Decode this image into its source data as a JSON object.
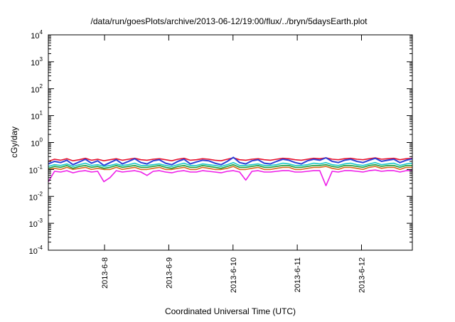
{
  "chart_data": {
    "type": "line",
    "title": "/data/run/goesPlots/archive/2013-06-12/19:00/flux/../bryn/5daysEarth.plot",
    "xlabel": "Coordinated Universal Time (UTC)",
    "ylabel": "cGy/day",
    "yscale": "log",
    "ylim": [
      0.0001,
      10000
    ],
    "xlim": [
      "2013-06-07T03:00",
      "2013-06-12T19:00"
    ],
    "grid": false,
    "legend": "none",
    "y_ticks": [
      {
        "base": "10",
        "exp": "4",
        "value": 10000
      },
      {
        "base": "10",
        "exp": "3",
        "value": 1000
      },
      {
        "base": "10",
        "exp": "2",
        "value": 100
      },
      {
        "base": "10",
        "exp": "1",
        "value": 10
      },
      {
        "base": "10",
        "exp": "0",
        "value": 1
      },
      {
        "base": "10",
        "exp": "-1",
        "value": 0.1
      },
      {
        "base": "10",
        "exp": "-2",
        "value": 0.01
      },
      {
        "base": "10",
        "exp": "-3",
        "value": 0.001
      },
      {
        "base": "10",
        "exp": "-4",
        "value": 0.0001
      }
    ],
    "x_ticks": [
      "2013-6-8",
      "2013-6-9",
      "2013-6-10",
      "2013-6-11",
      "2013-6-12"
    ],
    "x_tick_dates": [
      "2013-06-08T00:00",
      "2013-06-09T00:00",
      "2013-06-10T00:00",
      "2013-06-11T00:00",
      "2013-06-12T00:00"
    ],
    "series": [
      {
        "color": "#e8102a",
        "level": 0.22,
        "values": [
          0.2,
          0.24,
          0.22,
          0.25,
          0.21,
          0.23,
          0.26,
          0.22,
          0.24,
          0.21,
          0.23,
          0.25,
          0.22,
          0.24,
          0.26,
          0.23,
          0.22,
          0.24,
          0.25,
          0.23,
          0.21,
          0.24,
          0.26,
          0.22,
          0.23,
          0.25,
          0.24,
          0.22,
          0.21,
          0.24,
          0.27,
          0.23,
          0.22,
          0.24,
          0.25,
          0.23,
          0.22,
          0.24,
          0.26,
          0.25,
          0.23,
          0.22,
          0.24,
          0.26,
          0.25,
          0.27,
          0.24,
          0.23,
          0.25,
          0.26,
          0.24,
          0.23,
          0.25,
          0.27,
          0.24,
          0.25,
          0.26,
          0.23,
          0.25,
          0.26
        ]
      },
      {
        "color": "#2e3fd6",
        "level": 0.17,
        "values": [
          0.16,
          0.2,
          0.18,
          0.22,
          0.15,
          0.19,
          0.24,
          0.17,
          0.21,
          0.14,
          0.18,
          0.23,
          0.16,
          0.2,
          0.25,
          0.18,
          0.16,
          0.21,
          0.23,
          0.17,
          0.15,
          0.2,
          0.24,
          0.16,
          0.19,
          0.22,
          0.21,
          0.17,
          0.15,
          0.2,
          0.28,
          0.18,
          0.16,
          0.21,
          0.23,
          0.17,
          0.16,
          0.2,
          0.24,
          0.22,
          0.18,
          0.16,
          0.21,
          0.24,
          0.22,
          0.27,
          0.2,
          0.18,
          0.22,
          0.24,
          0.2,
          0.18,
          0.22,
          0.26,
          0.2,
          0.22,
          0.24,
          0.18,
          0.22,
          0.25
        ]
      },
      {
        "color": "#1bc8c8",
        "level": 0.14,
        "values": [
          0.13,
          0.15,
          0.14,
          0.16,
          0.13,
          0.15,
          0.17,
          0.14,
          0.15,
          0.13,
          0.14,
          0.16,
          0.14,
          0.15,
          0.17,
          0.14,
          0.14,
          0.15,
          0.16,
          0.14,
          0.13,
          0.15,
          0.17,
          0.14,
          0.14,
          0.16,
          0.15,
          0.14,
          0.13,
          0.15,
          0.18,
          0.14,
          0.14,
          0.15,
          0.16,
          0.14,
          0.14,
          0.15,
          0.17,
          0.16,
          0.14,
          0.14,
          0.15,
          0.17,
          0.16,
          0.18,
          0.15,
          0.14,
          0.16,
          0.17,
          0.15,
          0.14,
          0.16,
          0.18,
          0.15,
          0.16,
          0.17,
          0.14,
          0.16,
          0.17
        ]
      },
      {
        "color": "#1f9e3a",
        "level": 0.12,
        "values": [
          0.11,
          0.13,
          0.12,
          0.14,
          0.11,
          0.13,
          0.14,
          0.12,
          0.13,
          0.11,
          0.12,
          0.14,
          0.12,
          0.13,
          0.14,
          0.12,
          0.12,
          0.13,
          0.14,
          0.12,
          0.11,
          0.13,
          0.14,
          0.12,
          0.12,
          0.14,
          0.13,
          0.12,
          0.11,
          0.13,
          0.15,
          0.12,
          0.12,
          0.13,
          0.14,
          0.12,
          0.12,
          0.13,
          0.14,
          0.14,
          0.12,
          0.12,
          0.13,
          0.14,
          0.14,
          0.15,
          0.13,
          0.12,
          0.14,
          0.14,
          0.13,
          0.12,
          0.14,
          0.15,
          0.13,
          0.14,
          0.14,
          0.12,
          0.14,
          0.14
        ]
      },
      {
        "color": "#d86a20",
        "level": 0.11,
        "values": [
          0.1,
          0.11,
          0.1,
          0.12,
          0.1,
          0.11,
          0.12,
          0.1,
          0.11,
          0.1,
          0.1,
          0.12,
          0.1,
          0.11,
          0.12,
          0.1,
          0.1,
          0.11,
          0.12,
          0.1,
          0.1,
          0.11,
          0.12,
          0.1,
          0.1,
          0.12,
          0.11,
          0.1,
          0.1,
          0.11,
          0.13,
          0.1,
          0.1,
          0.11,
          0.12,
          0.1,
          0.1,
          0.11,
          0.12,
          0.12,
          0.1,
          0.1,
          0.11,
          0.12,
          0.12,
          0.13,
          0.11,
          0.1,
          0.12,
          0.12,
          0.11,
          0.1,
          0.12,
          0.13,
          0.11,
          0.12,
          0.12,
          0.1,
          0.12,
          0.12
        ]
      },
      {
        "color": "#ee1ee8",
        "level": 0.085,
        "values": [
          0.035,
          0.085,
          0.08,
          0.09,
          0.075,
          0.085,
          0.09,
          0.08,
          0.085,
          0.035,
          0.05,
          0.09,
          0.08,
          0.085,
          0.09,
          0.08,
          0.06,
          0.085,
          0.09,
          0.08,
          0.075,
          0.085,
          0.09,
          0.08,
          0.08,
          0.09,
          0.085,
          0.08,
          0.075,
          0.085,
          0.09,
          0.08,
          0.04,
          0.085,
          0.09,
          0.08,
          0.08,
          0.085,
          0.09,
          0.09,
          0.08,
          0.08,
          0.085,
          0.09,
          0.09,
          0.025,
          0.085,
          0.08,
          0.09,
          0.09,
          0.085,
          0.08,
          0.09,
          0.095,
          0.085,
          0.09,
          0.09,
          0.08,
          0.09,
          0.09
        ]
      }
    ]
  }
}
